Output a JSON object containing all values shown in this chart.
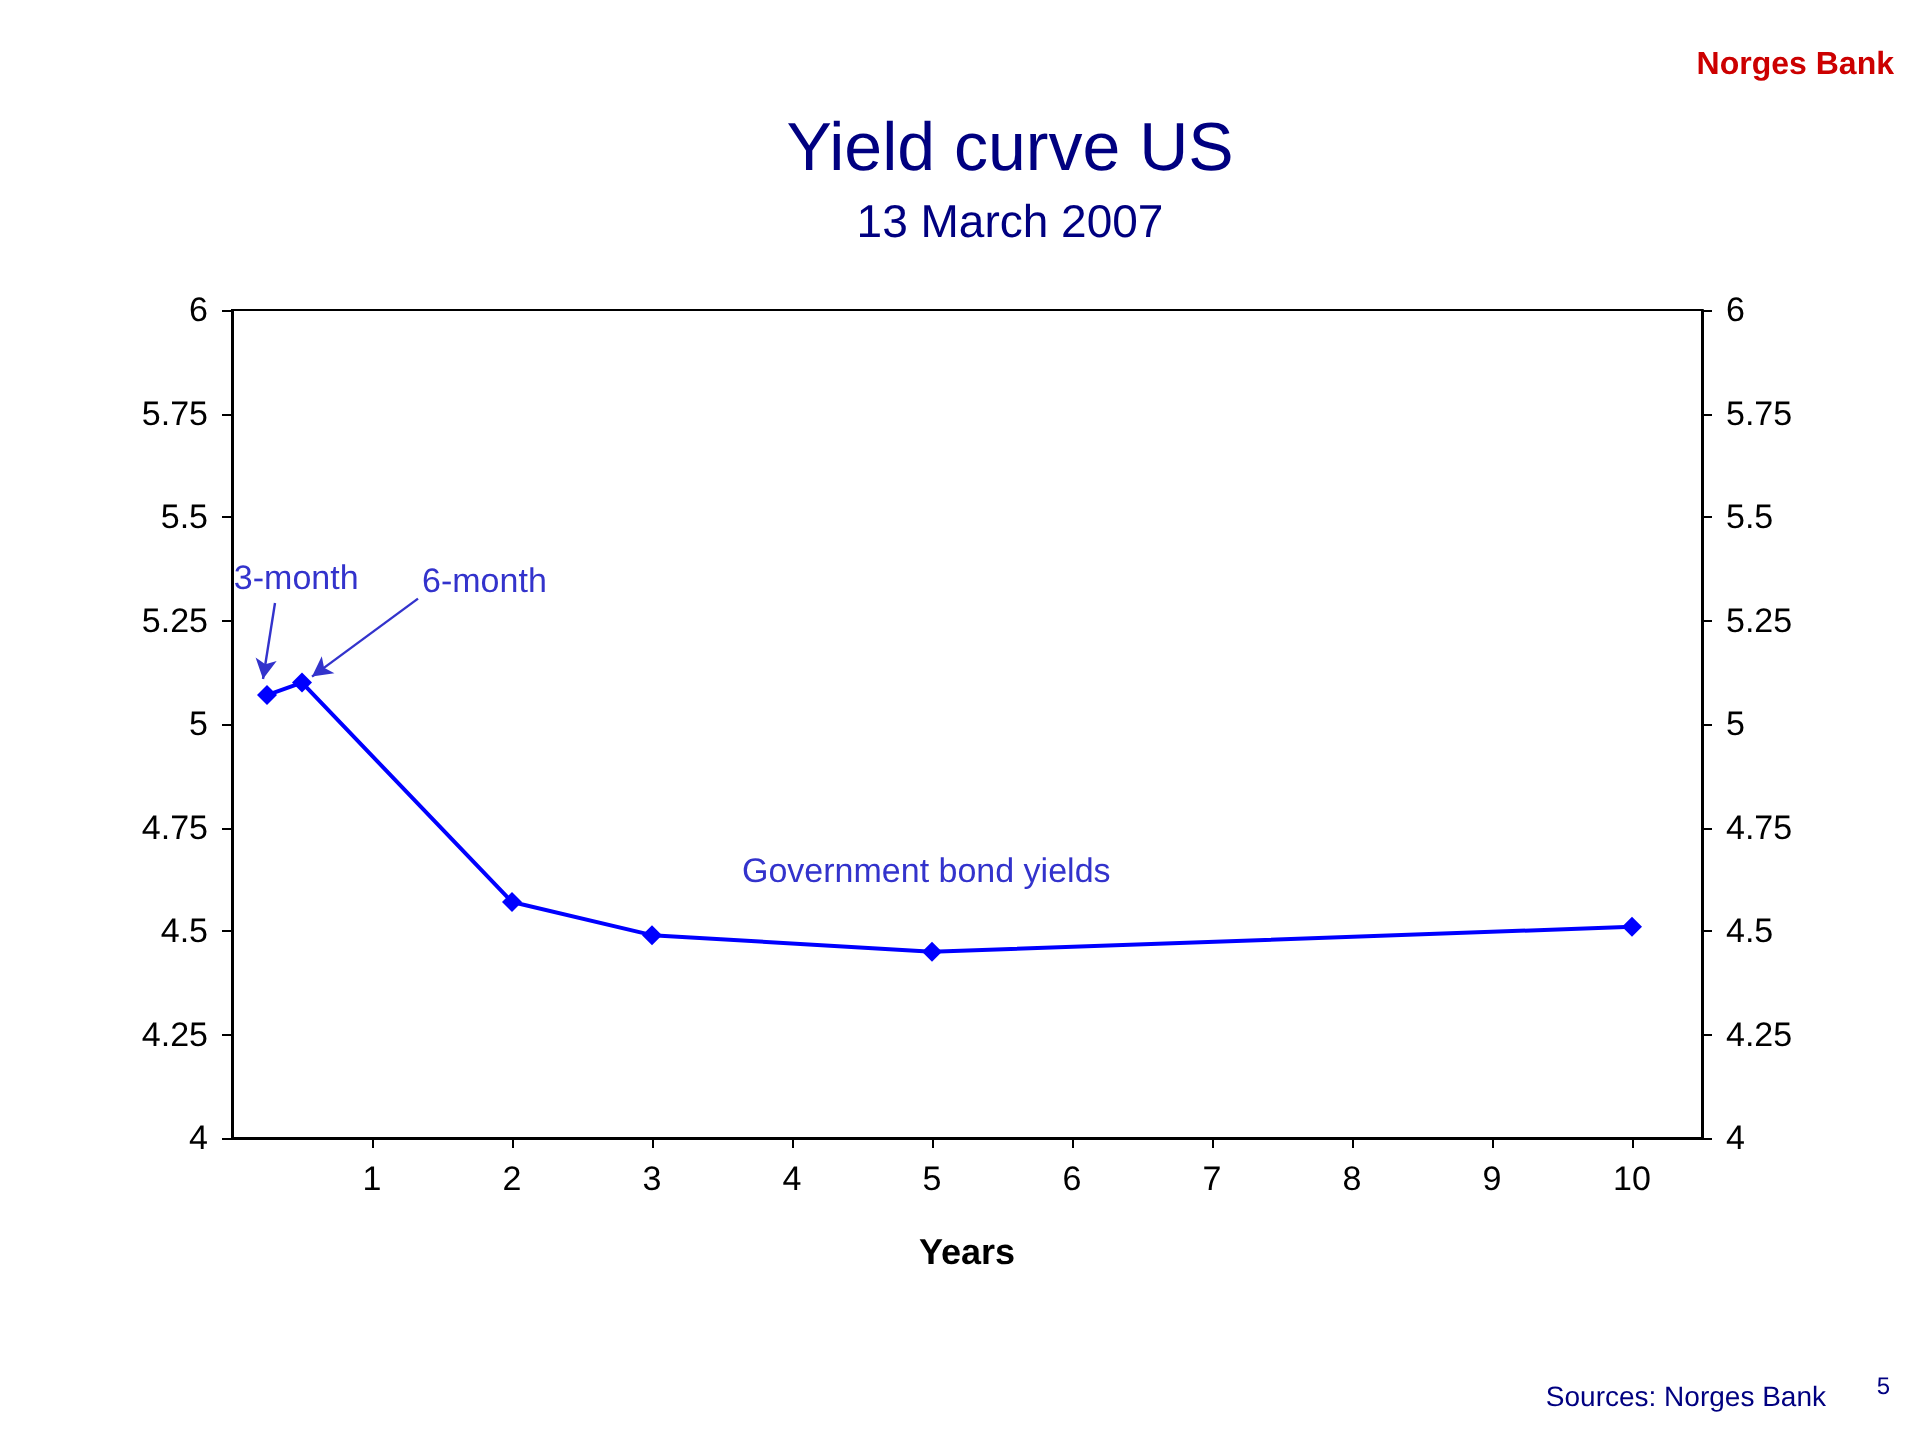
{
  "chart_data": {
    "type": "line",
    "title": "Yield curve US",
    "subtitle": "13 March 2007",
    "xlabel": "Years",
    "x": [
      0.25,
      0.5,
      2,
      3,
      5,
      10
    ],
    "series": [
      {
        "name": "Government bond yields",
        "color": "#0000ff",
        "values": [
          5.07,
          5.1,
          4.57,
          4.49,
          4.45,
          4.51
        ]
      }
    ],
    "xlim": [
      0,
      10.5
    ],
    "xticks": [
      1,
      2,
      3,
      4,
      5,
      6,
      7,
      8,
      9,
      10
    ],
    "ylim": [
      4,
      6
    ],
    "yticks": [
      4,
      4.25,
      4.5,
      4.75,
      5,
      5.25,
      5.5,
      5.75,
      6
    ],
    "y2lim": [
      4,
      6
    ],
    "y2ticks": [
      4,
      4.25,
      4.5,
      4.75,
      5,
      5.25,
      5.5,
      5.75,
      6
    ],
    "annotations": [
      "Norges Bank",
      {
        "text": "3-month",
        "x": 0.25,
        "y": 5.07
      },
      {
        "text": "6-month",
        "x": 0.5,
        "y": 5.1
      },
      "Sources: Norges Bank",
      "5"
    ],
    "marker": "diamond",
    "line_style": "solid",
    "grid": false,
    "legend": false
  }
}
